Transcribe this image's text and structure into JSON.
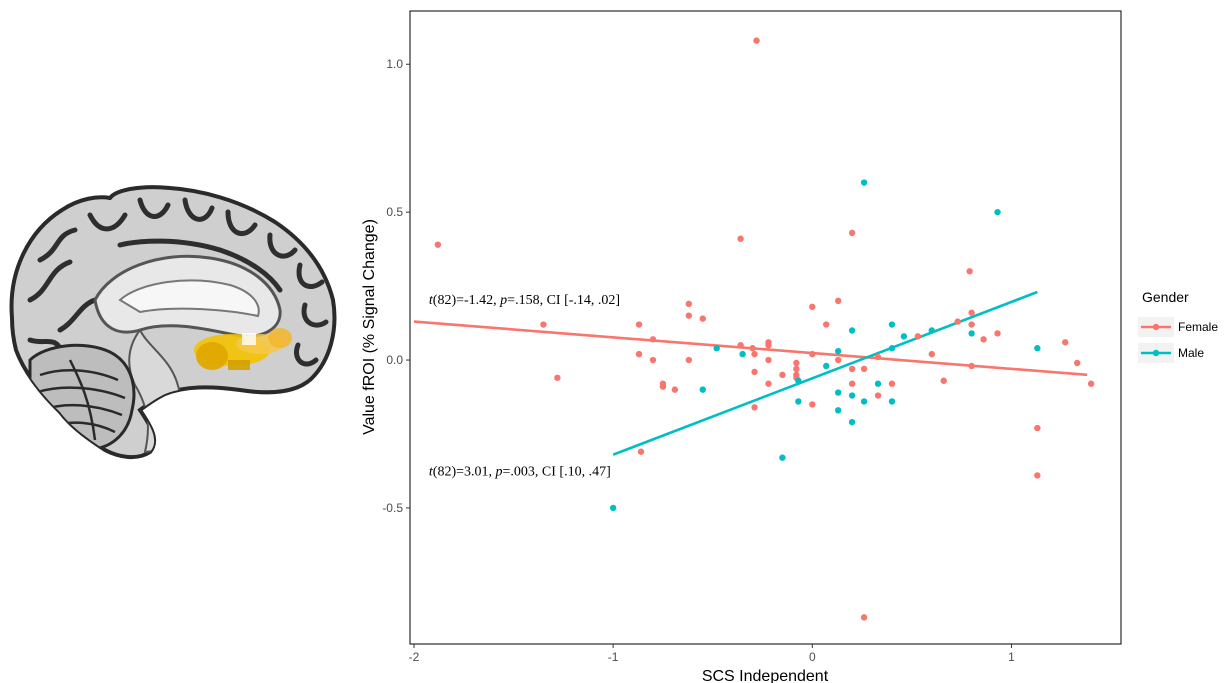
{
  "chart_data": {
    "type": "scatter",
    "xlabel": "SCS Independent",
    "ylabel": "Value fROI (% Signal Change)",
    "xlim": [
      -2.02,
      1.55
    ],
    "ylim": [
      -0.96,
      1.18
    ],
    "x_ticks": [
      -2,
      -1,
      0,
      1
    ],
    "x_tick_labels": [
      "-2",
      "-1",
      "0",
      "1"
    ],
    "y_ticks": [
      -0.5,
      0.0,
      0.5,
      1.0
    ],
    "y_tick_labels": [
      "-0.5",
      "0.0",
      "0.5",
      "1.0"
    ],
    "grid": false,
    "legend": {
      "title": "Gender",
      "position": "right"
    },
    "series": [
      {
        "name": "Female",
        "color": "#F8766D",
        "points": [
          [
            -1.88,
            0.39
          ],
          [
            -1.35,
            0.12
          ],
          [
            -1.28,
            -0.06
          ],
          [
            -0.87,
            0.12
          ],
          [
            -0.87,
            0.02
          ],
          [
            -0.86,
            -0.31
          ],
          [
            -0.8,
            0.07
          ],
          [
            -0.8,
            0.0
          ],
          [
            -0.75,
            -0.08
          ],
          [
            -0.75,
            -0.09
          ],
          [
            -0.69,
            -0.1
          ],
          [
            -0.62,
            0.19
          ],
          [
            -0.62,
            0.15
          ],
          [
            -0.62,
            0.0
          ],
          [
            -0.55,
            0.14
          ],
          [
            -0.36,
            0.41
          ],
          [
            -0.36,
            0.05
          ],
          [
            -0.3,
            0.04
          ],
          [
            -0.29,
            0.02
          ],
          [
            -0.29,
            -0.04
          ],
          [
            -0.29,
            -0.16
          ],
          [
            -0.28,
            1.08
          ],
          [
            -0.22,
            0.06
          ],
          [
            -0.22,
            0.05
          ],
          [
            -0.22,
            0.0
          ],
          [
            -0.22,
            -0.08
          ],
          [
            -0.15,
            -0.05
          ],
          [
            -0.08,
            -0.01
          ],
          [
            -0.08,
            -0.03
          ],
          [
            -0.08,
            -0.05
          ],
          [
            -0.08,
            -0.06
          ],
          [
            0.0,
            0.18
          ],
          [
            0.0,
            0.02
          ],
          [
            0.0,
            -0.15
          ],
          [
            0.07,
            0.12
          ],
          [
            0.13,
            0.2
          ],
          [
            0.13,
            0.0
          ],
          [
            0.2,
            0.43
          ],
          [
            0.2,
            -0.03
          ],
          [
            0.2,
            -0.08
          ],
          [
            0.26,
            -0.03
          ],
          [
            0.26,
            -0.87
          ],
          [
            0.33,
            -0.12
          ],
          [
            0.33,
            0.01
          ],
          [
            0.4,
            -0.08
          ],
          [
            0.53,
            0.08
          ],
          [
            0.6,
            0.02
          ],
          [
            0.66,
            -0.07
          ],
          [
            0.73,
            0.13
          ],
          [
            0.79,
            0.3
          ],
          [
            0.8,
            0.16
          ],
          [
            0.8,
            0.12
          ],
          [
            0.8,
            -0.02
          ],
          [
            0.86,
            0.07
          ],
          [
            0.93,
            0.09
          ],
          [
            1.13,
            -0.23
          ],
          [
            1.13,
            -0.39
          ],
          [
            1.27,
            0.06
          ],
          [
            1.33,
            -0.01
          ],
          [
            1.4,
            -0.08
          ]
        ],
        "fit": {
          "x": [
            -2.0,
            1.38
          ],
          "y": [
            0.13,
            -0.05
          ]
        }
      },
      {
        "name": "Male",
        "color": "#00BFC4",
        "points": [
          [
            -1.0,
            -0.5
          ],
          [
            -0.55,
            -0.1
          ],
          [
            -0.48,
            0.04
          ],
          [
            -0.35,
            0.02
          ],
          [
            -0.15,
            -0.33
          ],
          [
            -0.07,
            -0.07
          ],
          [
            -0.07,
            -0.14
          ],
          [
            0.07,
            -0.02
          ],
          [
            0.13,
            0.03
          ],
          [
            0.13,
            -0.11
          ],
          [
            0.13,
            -0.17
          ],
          [
            0.2,
            0.1
          ],
          [
            0.2,
            -0.12
          ],
          [
            0.2,
            -0.21
          ],
          [
            0.26,
            0.6
          ],
          [
            0.26,
            -0.14
          ],
          [
            0.33,
            -0.08
          ],
          [
            0.4,
            0.12
          ],
          [
            0.4,
            0.04
          ],
          [
            0.4,
            -0.14
          ],
          [
            0.46,
            0.08
          ],
          [
            0.6,
            0.1
          ],
          [
            0.8,
            0.09
          ],
          [
            0.93,
            0.5
          ],
          [
            1.13,
            0.04
          ]
        ],
        "fit": {
          "x": [
            -1.0,
            1.13
          ],
          "y": [
            -0.32,
            0.23
          ]
        }
      }
    ],
    "annotations": [
      {
        "parts": [
          [
            "t",
            true
          ],
          [
            "(82)=-1.42, ",
            false
          ],
          [
            "p",
            true
          ],
          [
            "=.158, CI [-.14, .02]",
            false
          ]
        ],
        "x": -1.9,
        "y": 0.19
      },
      {
        "parts": [
          [
            "t",
            true
          ],
          [
            "(82)=3.01, ",
            false
          ],
          [
            "p",
            true
          ],
          [
            "=.003, CI [.10, .47]",
            false
          ]
        ],
        "x": -1.9,
        "y": -0.39
      }
    ]
  }
}
